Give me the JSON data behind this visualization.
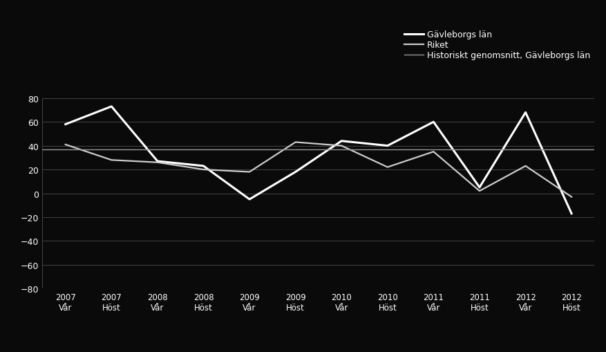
{
  "x_labels": [
    "2007\nVår",
    "2007\nHöst",
    "2008\nVår",
    "2008\nHöst",
    "2009\nVår",
    "2009\nHöst",
    "2010\nVår",
    "2010\nHöst",
    "2011\nVår",
    "2011\nHöst",
    "2012\nVår",
    "2012\nHöst"
  ],
  "gavleborg": [
    58,
    73,
    27,
    23,
    -5,
    18,
    44,
    40,
    60,
    5,
    68,
    -17
  ],
  "riket": [
    41,
    28,
    26,
    20,
    18,
    43,
    40,
    22,
    35,
    2,
    23,
    -3
  ],
  "historiskt_genomsnitt": 37,
  "gavleborg_color": "#ffffff",
  "riket_color": "#cccccc",
  "historiskt_color": "#999999",
  "background_color": "#0a0a0a",
  "text_color": "#ffffff",
  "grid_color": "#444444",
  "ylim": [
    -80,
    80
  ],
  "yticks": [
    -80,
    -60,
    -40,
    -20,
    0,
    20,
    40,
    60,
    80
  ],
  "legend_gavleborg": "Gävleborgs län",
  "legend_riket": "Riket",
  "legend_historiskt": "Historiskt genomsnitt, Gävleborgs län",
  "gavleborg_linewidth": 2.2,
  "riket_linewidth": 1.6,
  "historiskt_linewidth": 1.0
}
